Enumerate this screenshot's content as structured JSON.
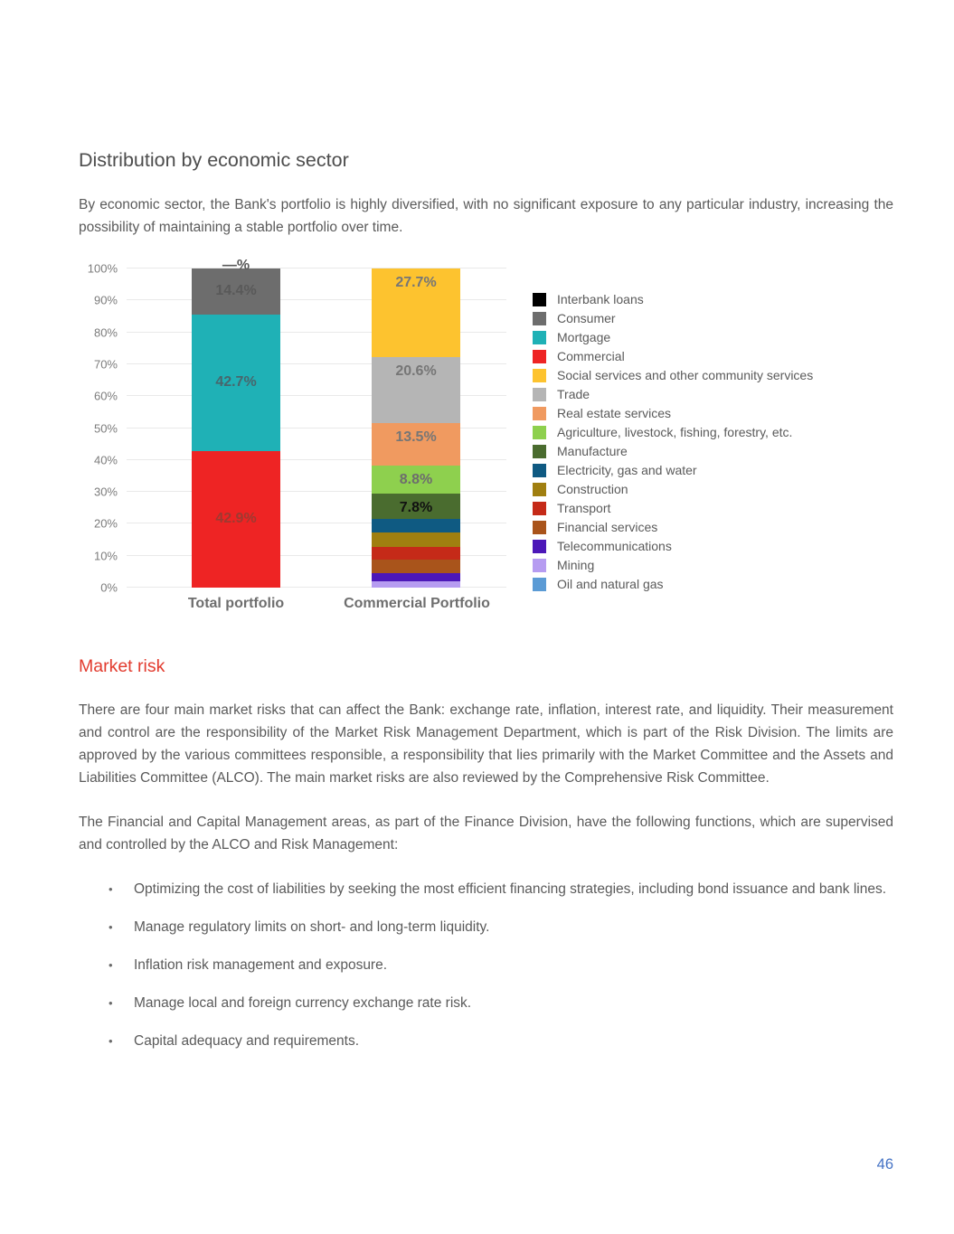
{
  "page": {
    "number": "46"
  },
  "section1": {
    "title": "Distribution by economic sector",
    "paragraph": "By economic sector, the Bank's portfolio is highly diversified, with no significant exposure to any particular industry, increasing the possibility of maintaining a stable portfolio over time."
  },
  "chart_data": {
    "type": "stacked-bar",
    "ylim": [
      0,
      100
    ],
    "yticks": [
      "0%",
      "10%",
      "20%",
      "30%",
      "40%",
      "50%",
      "60%",
      "70%",
      "80%",
      "90%",
      "100%"
    ],
    "grid": true,
    "legend_position": "right",
    "categories": [
      "Total portfolio",
      "Commercial Portfolio"
    ],
    "legend": [
      {
        "label": "Interbank loans",
        "color": "#000000"
      },
      {
        "label": "Consumer",
        "color": "#6d6d6d"
      },
      {
        "label": "Mortgage",
        "color": "#1fb1b6"
      },
      {
        "label": "Commercial",
        "color": "#ee2424"
      },
      {
        "label": "Social services and other community services",
        "color": "#fdc32f"
      },
      {
        "label": "Trade",
        "color": "#b5b5b5"
      },
      {
        "label": "Real estate services",
        "color": "#f09a60"
      },
      {
        "label": "Agriculture, livestock, fishing, forestry, etc.",
        "color": "#8ed04e"
      },
      {
        "label": "Manufacture",
        "color": "#4a6c2f"
      },
      {
        "label": "Electricity, gas and water",
        "color": "#0f5a82"
      },
      {
        "label": "Construction",
        "color": "#a07f10"
      },
      {
        "label": "Transport",
        "color": "#c52a18"
      },
      {
        "label": "Financial services",
        "color": "#a9541b"
      },
      {
        "label": "Telecommunications",
        "color": "#4c17b8"
      },
      {
        "label": "Mining",
        "color": "#b69cf1"
      },
      {
        "label": "Oil and natural gas",
        "color": "#5b9bd5"
      }
    ],
    "bars": [
      {
        "category": "Total portfolio",
        "segments_bottom_up": [
          {
            "name": "Commercial",
            "value": 42.9,
            "display": "42.9%",
            "color": "#ee2424",
            "label_color": "#9e3a31",
            "label_style": "center"
          },
          {
            "name": "Mortgage",
            "value": 42.7,
            "display": "42.7%",
            "color": "#1fb1b6",
            "label_color": "#48666c",
            "label_style": "center"
          },
          {
            "name": "Consumer",
            "value": 14.4,
            "display": "14.4%",
            "color": "#6d6d6d",
            "label_color": "#595959",
            "label_style": "center"
          },
          {
            "name": "Interbank loans",
            "value": 0.0,
            "display": "—%",
            "color": "#000000",
            "label_color": "#595959",
            "label_style": "above"
          }
        ]
      },
      {
        "category": "Commercial Portfolio",
        "segments_bottom_up": [
          {
            "name": "Oil and natural gas",
            "value": 0.0,
            "display": "",
            "color": "#5b9bd5"
          },
          {
            "name": "Mining",
            "value": 1.9,
            "display": "",
            "color": "#b69cf1"
          },
          {
            "name": "Telecommunications",
            "value": 2.5,
            "display": "",
            "color": "#4c17b8"
          },
          {
            "name": "Financial services",
            "value": 4.3,
            "display": "",
            "color": "#a9541b"
          },
          {
            "name": "Transport",
            "value": 4.1,
            "display": "",
            "color": "#c52a18"
          },
          {
            "name": "Construction",
            "value": 4.6,
            "display": "",
            "color": "#a07f10"
          },
          {
            "name": "Electricity, gas and water",
            "value": 4.2,
            "display": "",
            "color": "#0f5a82"
          },
          {
            "name": "Manufacture",
            "value": 7.8,
            "display": "7.8%",
            "color": "#4a6c2f",
            "label_color": "#111111",
            "label_style": "top"
          },
          {
            "name": "Agriculture, livestock, fishing, forestry, etc.",
            "value": 8.8,
            "display": "8.8%",
            "color": "#8ed04e",
            "label_color": "#6d6d6d",
            "label_style": "top"
          },
          {
            "name": "Real estate services",
            "value": 13.5,
            "display": "13.5%",
            "color": "#f09a60",
            "label_color": "#767676",
            "label_style": "top"
          },
          {
            "name": "Trade",
            "value": 20.6,
            "display": "20.6%",
            "color": "#b5b5b5",
            "label_color": "#767676",
            "label_style": "top"
          },
          {
            "name": "Social services and other community services",
            "value": 27.7,
            "display": "27.7%",
            "color": "#fdc32f",
            "label_color": "#767676",
            "label_style": "top"
          }
        ]
      }
    ]
  },
  "market_risk": {
    "title": "Market risk",
    "paragraph1": "There are four main market risks that can affect the Bank: exchange rate, inflation, interest rate, and liquidity. Their measurement and control are the responsibility of the Market Risk Management Department, which is part of the Risk Division. The limits are approved by the various committees responsible, a responsibility that lies primarily with the Market Committee and the Assets and Liabilities Committee (ALCO). The main market risks are also reviewed by the Comprehensive Risk Committee.",
    "paragraph2": "The Financial and Capital Management areas, as part of the Finance Division, have the following functions, which are supervised and controlled by the ALCO and Risk Management:",
    "bullets": [
      "Optimizing the cost of liabilities by seeking the most efficient financing strategies, including bond issuance and bank lines.",
      "Manage regulatory limits on short- and long-term liquidity.",
      "Inflation risk management and exposure.",
      "Manage local and foreign currency exchange rate risk.",
      "Capital adequacy and requirements."
    ]
  },
  "colors": {
    "accent_red": "#e23b2e",
    "page_number_blue": "#4472c4",
    "body_text": "#5a5a5a",
    "heading_gray": "#4d4d4d"
  }
}
